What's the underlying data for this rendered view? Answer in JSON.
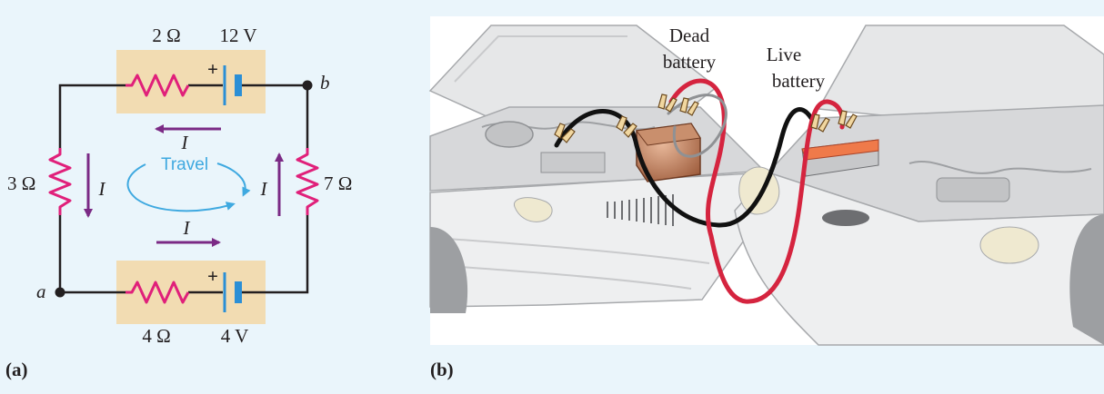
{
  "panel_a": {
    "caption": "(a)",
    "top_resistor": "2 Ω",
    "top_emf": "12 V",
    "node_b": "b",
    "node_a": "a",
    "left_resistor": "3 Ω",
    "right_resistor": "7 Ω",
    "bottom_resistor": "4 Ω",
    "bottom_emf": "4 V",
    "current_top": "I",
    "current_left": "I",
    "current_right": "I",
    "current_bottom": "I",
    "travel_label": "Travel",
    "plus_sign": "+"
  },
  "panel_b": {
    "caption": "(b)",
    "dead_line1": "Dead",
    "dead_line2": "battery",
    "live_line1": "Live",
    "live_line2": "battery"
  },
  "colors": {
    "background": "#eaf5fb",
    "resistor": "#e0207a",
    "battery_box": "#f2dcb2",
    "battery_plate": "#2b8fd6",
    "arrow": "#7b2a85",
    "travel": "#3fa9e0",
    "red_cable": "#d5243f",
    "black_cable": "#111111"
  }
}
